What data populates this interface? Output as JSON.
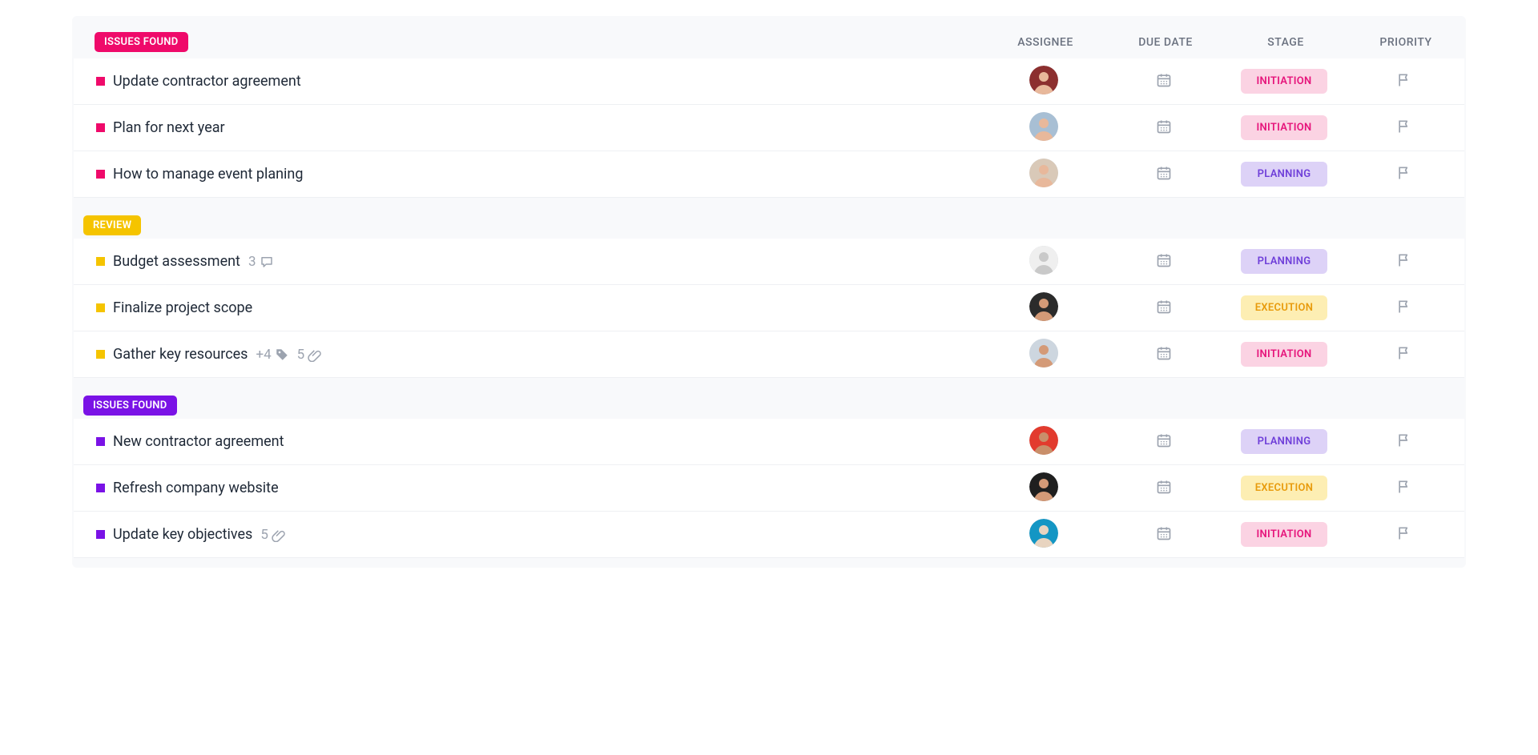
{
  "columns": {
    "assignee": "ASSIGNEE",
    "due": "DUE DATE",
    "stage": "STAGE",
    "priority": "PRIORITY"
  },
  "stages": {
    "initiation": {
      "label": "INITIATION",
      "bg": "#fbd3e3",
      "fg": "#e6147b"
    },
    "planning": {
      "label": "PLANNING",
      "bg": "#ddd2f7",
      "fg": "#6f3fd9"
    },
    "execution": {
      "label": "EXECUTION",
      "bg": "#fdeeb3",
      "fg": "#e89b0c"
    }
  },
  "groups": [
    {
      "label": "ISSUES FOUND",
      "color": "#ef0a6a",
      "square": "#ef0a6a",
      "tasks": [
        {
          "title": "Update contractor agreement",
          "stage": "initiation",
          "avatar": {
            "bg": "#8c2f2f",
            "skin": "#e8b89b"
          }
        },
        {
          "title": "Plan for next year",
          "stage": "initiation",
          "avatar": {
            "bg": "#a8bfd4",
            "skin": "#e8b89b"
          }
        },
        {
          "title": "How to manage event planing",
          "stage": "planning",
          "avatar": {
            "bg": "#d9c9b8",
            "skin": "#e8b89b"
          }
        }
      ]
    },
    {
      "label": "REVIEW",
      "color": "#f5c400",
      "square": "#f5c400",
      "tasks": [
        {
          "title": "Budget assessment",
          "stage": "planning",
          "comments": 3,
          "avatar": {
            "bg": "#efefef",
            "skin": "#c9c9c9"
          }
        },
        {
          "title": "Finalize project scope",
          "stage": "execution",
          "avatar": {
            "bg": "#2b2b2b",
            "skin": "#d49a77"
          }
        },
        {
          "title": "Gather key resources",
          "stage": "initiation",
          "tags": "+4",
          "attachments": 5,
          "avatar": {
            "bg": "#cdd6df",
            "skin": "#d49a77"
          }
        }
      ]
    },
    {
      "label": "ISSUES FOUND",
      "color": "#7a12e6",
      "square": "#7a12e6",
      "tasks": [
        {
          "title": "New contractor agreement",
          "stage": "planning",
          "avatar": {
            "bg": "#e23b2e",
            "skin": "#c98f6a"
          }
        },
        {
          "title": "Refresh company website",
          "stage": "execution",
          "avatar": {
            "bg": "#1f1f1f",
            "skin": "#d49a77"
          }
        },
        {
          "title": "Update key objectives",
          "stage": "initiation",
          "attachments": 5,
          "avatar": {
            "bg": "#1496c4",
            "skin": "#e8d4c0"
          }
        }
      ]
    }
  ]
}
